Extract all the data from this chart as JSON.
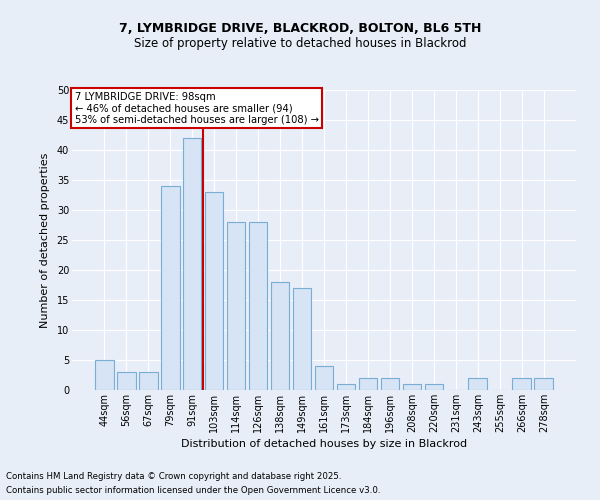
{
  "title1": "7, LYMBRIDGE DRIVE, BLACKROD, BOLTON, BL6 5TH",
  "title2": "Size of property relative to detached houses in Blackrod",
  "xlabel": "Distribution of detached houses by size in Blackrod",
  "ylabel": "Number of detached properties",
  "categories": [
    "44sqm",
    "56sqm",
    "67sqm",
    "79sqm",
    "91sqm",
    "103sqm",
    "114sqm",
    "126sqm",
    "138sqm",
    "149sqm",
    "161sqm",
    "173sqm",
    "184sqm",
    "196sqm",
    "208sqm",
    "220sqm",
    "231sqm",
    "243sqm",
    "255sqm",
    "266sqm",
    "278sqm"
  ],
  "values": [
    5,
    3,
    3,
    34,
    42,
    33,
    28,
    28,
    18,
    17,
    4,
    1,
    2,
    2,
    1,
    1,
    0,
    2,
    0,
    2,
    2
  ],
  "bar_color": "#d6e4f5",
  "bar_edge_color": "#7aadd4",
  "vline_color": "#cc0000",
  "vline_pos": 4.5,
  "annotation_text": "7 LYMBRIDGE DRIVE: 98sqm\n← 46% of detached houses are smaller (94)\n53% of semi-detached houses are larger (108) →",
  "annotation_box_facecolor": "#ffffff",
  "annotation_box_edgecolor": "#cc0000",
  "footnote1": "Contains HM Land Registry data © Crown copyright and database right 2025.",
  "footnote2": "Contains public sector information licensed under the Open Government Licence v3.0.",
  "ylim": [
    0,
    50
  ],
  "yticks": [
    0,
    5,
    10,
    15,
    20,
    25,
    30,
    35,
    40,
    45,
    50
  ],
  "background_color": "#e8eef8",
  "grid_color": "#ffffff",
  "title_fontsize": 9,
  "subtitle_fontsize": 8.5,
  "tick_fontsize": 7,
  "label_fontsize": 8
}
